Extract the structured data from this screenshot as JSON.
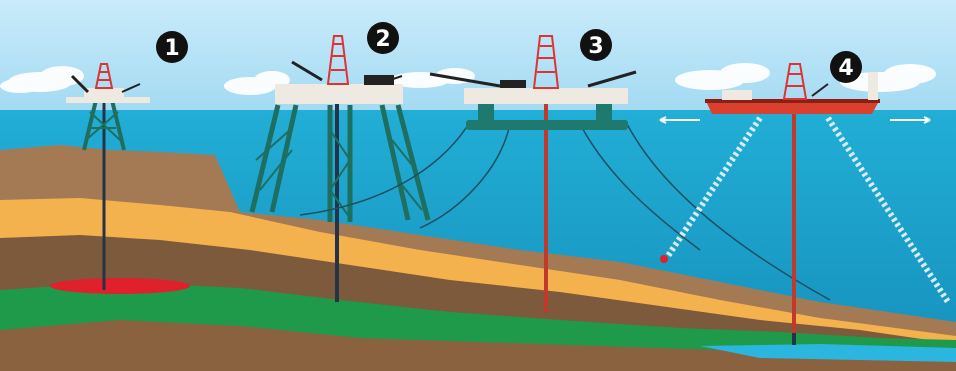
{
  "labels": [
    "1",
    "2",
    "3",
    "4"
  ],
  "colors": {
    "sky_top": "#bfe6f8",
    "sky_bottom": "#9ed8f2",
    "sea": "#1ba6cf",
    "sea_deep": "#1497c2",
    "soil_top": "#a47a55",
    "sand": "#f4b24f",
    "mid_brown": "#7d5a3c",
    "green": "#1e9a4a",
    "bedrock": "#8a6240",
    "oil": "#e0202a",
    "rig_tower": "#1f6f60",
    "platform": "#eeeae2",
    "pipe_red": "#c0392b",
    "pipe_dark": "#243447",
    "ship_hull": "#d9412e",
    "badge": "#111111"
  },
  "icons": [
    "fixed-platform-icon",
    "jackup-platform-icon",
    "semi-submersible-icon",
    "drillship-icon"
  ]
}
